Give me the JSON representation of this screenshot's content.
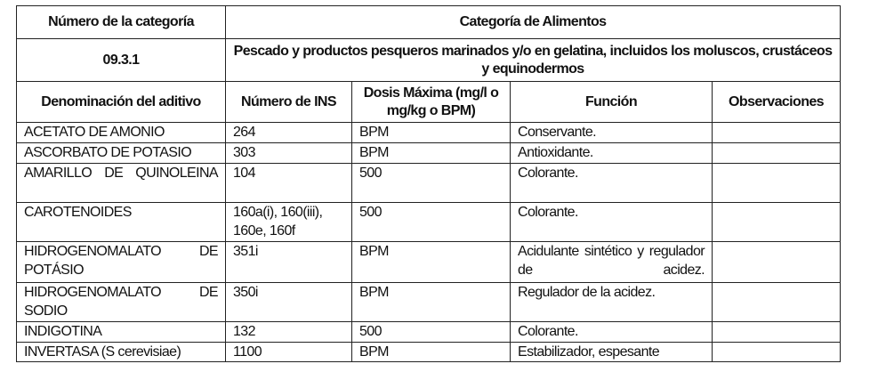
{
  "header": {
    "category_number_label": "Número de la categoría",
    "food_category_label": "Categoría de Alimentos",
    "category_number": "09.3.1",
    "category_name": "Pescado y productos pesqueros marinados y/o en gelatina, incluidos los moluscos, crustáceos y equinodermos"
  },
  "columns": [
    "Denominación del aditivo",
    "Número de INS",
    "Dosis Máxima (mg/l o mg/kg o BPM)",
    "Función",
    "Observaciones"
  ],
  "rows": [
    {
      "name": "ACETATO DE AMONIO",
      "ins": "264",
      "dose": "BPM",
      "function": "Conservante.",
      "notes": ""
    },
    {
      "name": "ASCORBATO DE POTASIO",
      "ins": "303",
      "dose": "BPM",
      "function": "Antioxidante.",
      "notes": ""
    },
    {
      "name": "AMARILLO DE QUINOLEINA",
      "ins": "104",
      "dose": "500",
      "function": "Colorante.",
      "notes": ""
    },
    {
      "name": "CAROTENOIDES",
      "ins": "160a(i), 160(iii), 160e, 160f",
      "dose": "500",
      "function": "Colorante.",
      "notes": ""
    },
    {
      "name": "HIDROGENOMALATO DE POTÁSIO",
      "ins": "351i",
      "dose": "BPM",
      "function": "Acidulante sintético y regulador de acidez.",
      "notes": ""
    },
    {
      "name": "HIDROGENOMALATO DE SODIO",
      "ins": "350i",
      "dose": "BPM",
      "function": "Regulador de la acidez.",
      "notes": ""
    },
    {
      "name": "INDIGOTINA",
      "ins": "132",
      "dose": "500",
      "function": "Colorante.",
      "notes": ""
    },
    {
      "name": "INVERTASA (S cerevisiae)",
      "ins": "1100",
      "dose": "BPM",
      "function": "Estabilizador, espesante",
      "notes": ""
    }
  ]
}
